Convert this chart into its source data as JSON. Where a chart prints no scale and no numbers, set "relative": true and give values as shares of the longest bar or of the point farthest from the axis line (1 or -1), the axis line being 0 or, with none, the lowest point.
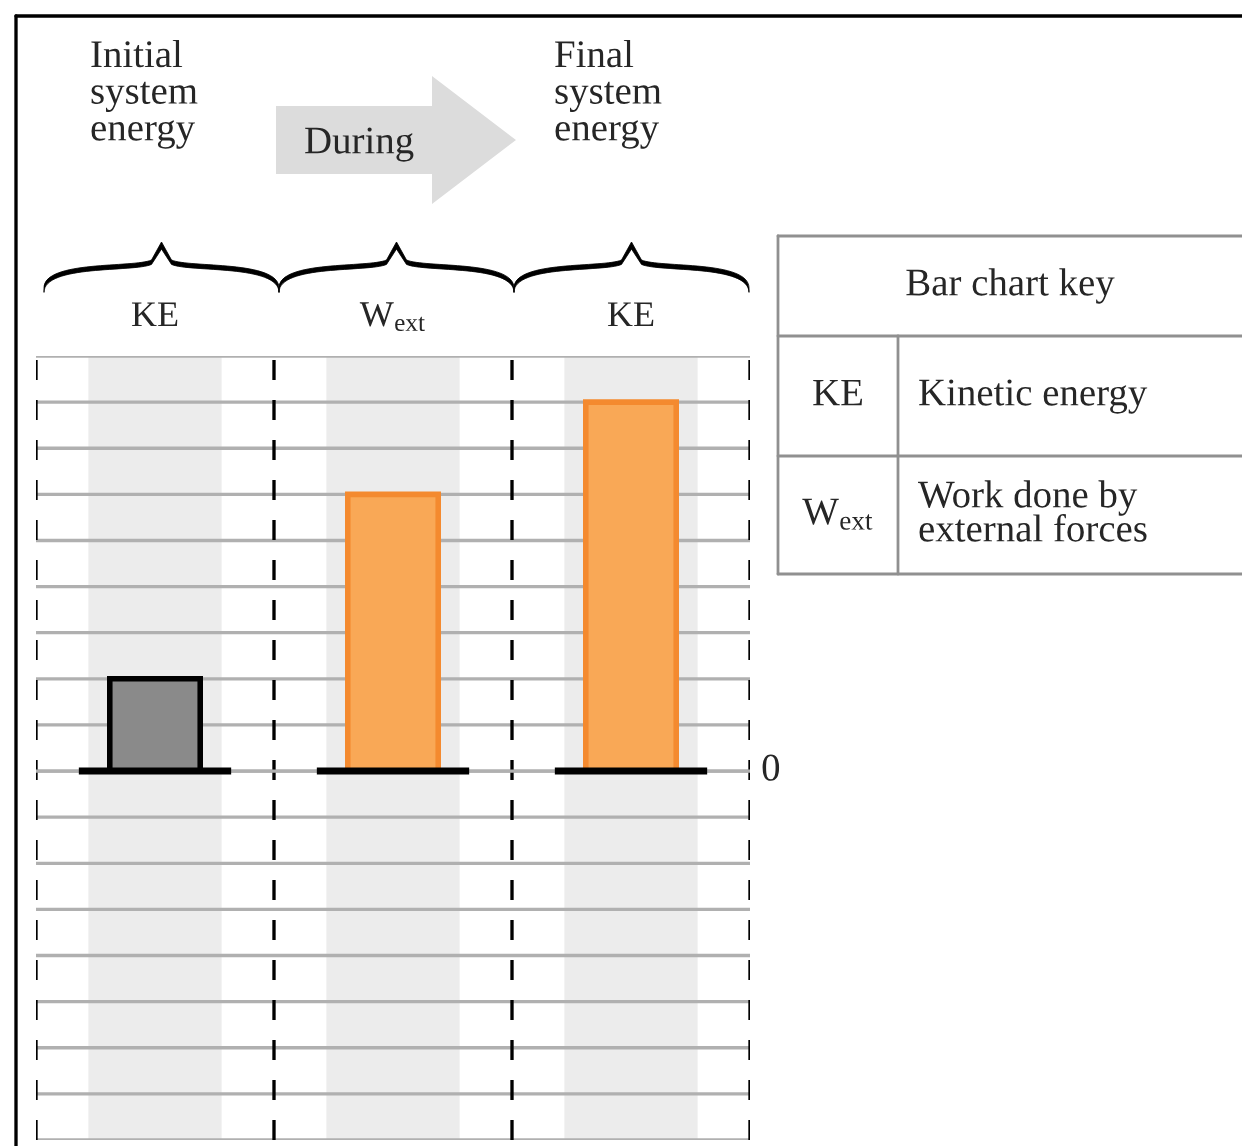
{
  "chart_data": {
    "type": "bar",
    "relative": true,
    "categories": [
      "KE",
      "W$_{ext}$",
      "KE"
    ],
    "values": [
      0.25,
      0.75,
      1
    ],
    "colors": [
      "#8a8a8a",
      "#f9a856",
      "#f9a856"
    ],
    "grid": "y",
    "ref_lines": [
      {
        "axis": "y",
        "value": 0,
        "label": "0"
      }
    ],
    "annotations": [
      "Initial\nsystem\nenergy",
      "During",
      "Final\nsystem\nenergy",
      "Bar chart key",
      "KE",
      "Kinetic energy",
      "W$_{ext}$",
      "Work done by\nexternal forces"
    ]
  }
}
